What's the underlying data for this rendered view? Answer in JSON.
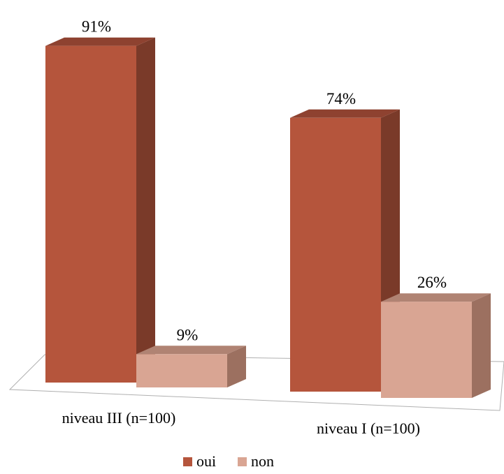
{
  "chart_data": {
    "type": "bar",
    "title": "",
    "xlabel": "",
    "ylabel": "",
    "ylim": [
      0,
      100
    ],
    "categories": [
      "niveau III (n=100)",
      "niveau I (n=100)"
    ],
    "series": [
      {
        "name": "oui",
        "values": [
          91,
          74
        ],
        "labels": [
          "91%",
          "74%"
        ],
        "color": "#B5553C",
        "side_color": "#7A3A29",
        "top_color": "#8E4230"
      },
      {
        "name": "non",
        "values": [
          9,
          26
        ],
        "labels": [
          "9%",
          "26%"
        ],
        "color": "#D9A593",
        "side_color": "#9C7060",
        "top_color": "#B08373"
      }
    ],
    "legend_position": "bottom",
    "grid": false,
    "style": "3d"
  }
}
